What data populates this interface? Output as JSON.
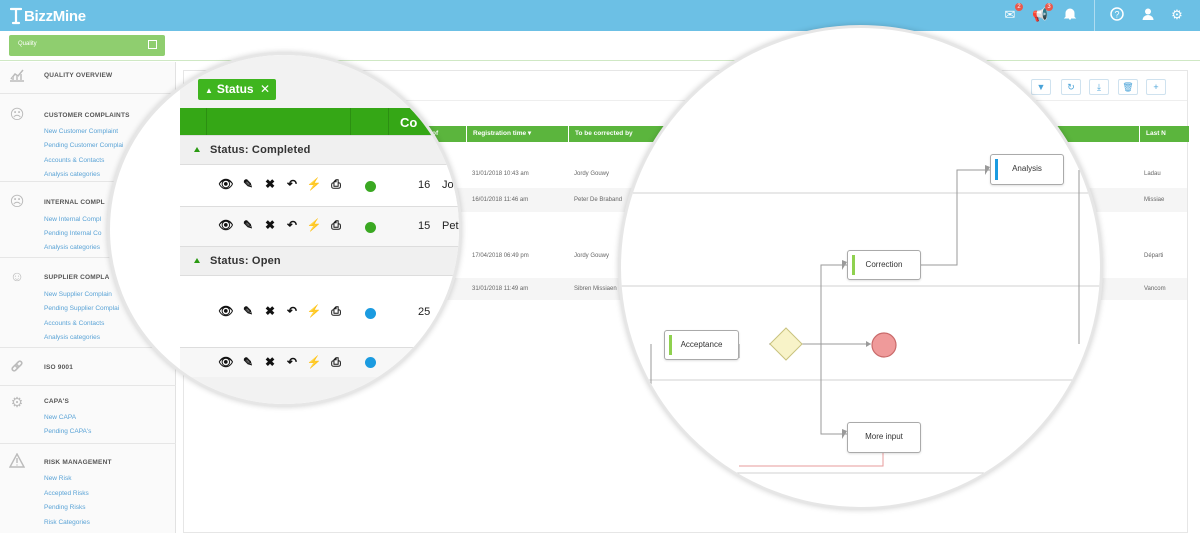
{
  "app": {
    "brand": "BizzMine",
    "notifications": {
      "mail_count": "2",
      "announce_count": "3"
    },
    "accent": "#6cc0e5",
    "green": "#5bb53d"
  },
  "module_button": {
    "label": "Quality"
  },
  "sidebar": {
    "sections": [
      {
        "title": "QUALITY OVERVIEW",
        "icon": "chart-icon",
        "links": []
      },
      {
        "title": "CUSTOMER COMPLAINTS",
        "icon": "sad-face-icon",
        "links": [
          "New Customer Complaint",
          "Pending Customer Complai",
          "Accounts & Contacts",
          "Analysis categories"
        ]
      },
      {
        "title": "INTERNAL COMPL",
        "icon": "frown-face-icon",
        "links": [
          "New Internal Compl",
          "Pending Internal Co",
          "Analysis categories"
        ]
      },
      {
        "title": "SUPPLIER COMPLA",
        "icon": "surprised-face-icon",
        "links": [
          "New Supplier Complain",
          "Pending Supplier Complai",
          "Accounts & Contacts",
          "Analysis categories"
        ]
      },
      {
        "title": "ISO 9001",
        "icon": "link-icon",
        "links": []
      },
      {
        "title": "CAPA'S",
        "icon": "gears-icon",
        "links": [
          "New CAPA",
          "Pending CAPA's"
        ]
      },
      {
        "title": "RISK MANAGEMENT",
        "icon": "warning-icon",
        "links": [
          "New Risk",
          "Accepted Risks",
          "Pending Risks",
          "Risk Categories"
        ]
      }
    ]
  },
  "grid": {
    "columns": {
      "of": "of",
      "registration_time": "Registration time",
      "to_be_corrected_by": "To be corrected by",
      "last": "Last N"
    },
    "rows": [
      {
        "time": "31/01/2018 10:43 am",
        "corrected_by": "Jordy Gouwy",
        "last": "Ladau"
      },
      {
        "time": "16/01/2018 11:46 am",
        "corrected_by": "Peter De Braband",
        "last": "Missiae"
      },
      {
        "time": "17/04/2018 06:49 pm",
        "corrected_by": "Jordy Gouwy",
        "last": "Départi"
      },
      {
        "time": "31/01/2018 11:49 am",
        "corrected_by": "Sibren Missiaen",
        "last": "Vancom"
      }
    ]
  },
  "zoom_left": {
    "chip": "Status",
    "header_col": "Co",
    "groups": [
      {
        "label": "Status: Completed",
        "rows": [
          {
            "num": "16",
            "name": "Jo",
            "dot": "#3aa822"
          },
          {
            "num": "15",
            "name": "Pet",
            "dot": "#3aa822"
          }
        ]
      },
      {
        "label": "Status: Open",
        "rows": [
          {
            "num": "25",
            "name": "",
            "dot": "#1b9be0"
          },
          {
            "num": "",
            "name": "",
            "dot": "#1b9be0"
          }
        ]
      }
    ]
  },
  "flow": {
    "nodes": {
      "acceptance": "Acceptance",
      "correction": "Correction",
      "analysis": "Analysis",
      "more_input": "More input"
    }
  }
}
